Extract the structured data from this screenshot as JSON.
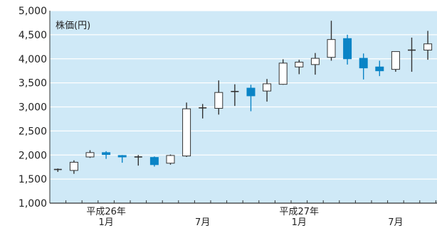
{
  "chart_data": {
    "type": "candlestick",
    "unit_label": "株価(円)",
    "ylim": [
      1000,
      5000
    ],
    "y_ticks": [
      {
        "value": 1000,
        "label": "1,000"
      },
      {
        "value": 1500,
        "label": "1,500"
      },
      {
        "value": 2000,
        "label": "2,000"
      },
      {
        "value": 2500,
        "label": "2,500"
      },
      {
        "value": 3000,
        "label": "3,000"
      },
      {
        "value": 3500,
        "label": "3,500"
      },
      {
        "value": 4000,
        "label": "4,000"
      },
      {
        "value": 4500,
        "label": "4,500"
      },
      {
        "value": 5000,
        "label": "5,000"
      }
    ],
    "grid": true,
    "colors": {
      "plot_background": "#cfe9f7",
      "grid": "#ffffff",
      "up_body": "#ffffff",
      "down_body": "#0a84c6",
      "outline": "#333333",
      "axis": "#333333"
    },
    "x_labels": [
      {
        "index": 3,
        "lines": [
          "平成26年",
          "1月"
        ]
      },
      {
        "index": 9,
        "lines": [
          "7月"
        ]
      },
      {
        "index": 15,
        "lines": [
          "平成27年",
          "1月"
        ]
      },
      {
        "index": 21,
        "lines": [
          "7月"
        ]
      }
    ],
    "candles": [
      {
        "open": 1700,
        "high": 1720,
        "low": 1650,
        "close": 1700
      },
      {
        "open": 1680,
        "high": 1890,
        "low": 1610,
        "close": 1850
      },
      {
        "open": 1960,
        "high": 2100,
        "low": 1940,
        "close": 2050
      },
      {
        "open": 2050,
        "high": 2080,
        "low": 1920,
        "close": 2010
      },
      {
        "open": 1990,
        "high": 2000,
        "low": 1840,
        "close": 1960
      },
      {
        "open": 1960,
        "high": 2000,
        "low": 1780,
        "close": 1960
      },
      {
        "open": 1950,
        "high": 1970,
        "low": 1760,
        "close": 1800
      },
      {
        "open": 1830,
        "high": 2010,
        "low": 1800,
        "close": 1990
      },
      {
        "open": 1980,
        "high": 3090,
        "low": 1960,
        "close": 2960
      },
      {
        "open": 2980,
        "high": 3060,
        "low": 2760,
        "close": 2980
      },
      {
        "open": 2970,
        "high": 3550,
        "low": 2840,
        "close": 3300
      },
      {
        "open": 3320,
        "high": 3470,
        "low": 3020,
        "close": 3320
      },
      {
        "open": 3390,
        "high": 3460,
        "low": 2910,
        "close": 3230
      },
      {
        "open": 3330,
        "high": 3580,
        "low": 3110,
        "close": 3480
      },
      {
        "open": 3470,
        "high": 3990,
        "low": 3460,
        "close": 3910
      },
      {
        "open": 3830,
        "high": 3980,
        "low": 3680,
        "close": 3930
      },
      {
        "open": 3880,
        "high": 4120,
        "low": 3670,
        "close": 4010
      },
      {
        "open": 4030,
        "high": 4790,
        "low": 3960,
        "close": 4400
      },
      {
        "open": 4420,
        "high": 4500,
        "low": 3880,
        "close": 4000
      },
      {
        "open": 4010,
        "high": 4110,
        "low": 3570,
        "close": 3810
      },
      {
        "open": 3830,
        "high": 3960,
        "low": 3640,
        "close": 3750
      },
      {
        "open": 3780,
        "high": 4150,
        "low": 3730,
        "close": 4150
      },
      {
        "open": 4180,
        "high": 4440,
        "low": 3730,
        "close": 4180
      },
      {
        "open": 4180,
        "high": 4580,
        "low": 3980,
        "close": 4310
      }
    ]
  }
}
